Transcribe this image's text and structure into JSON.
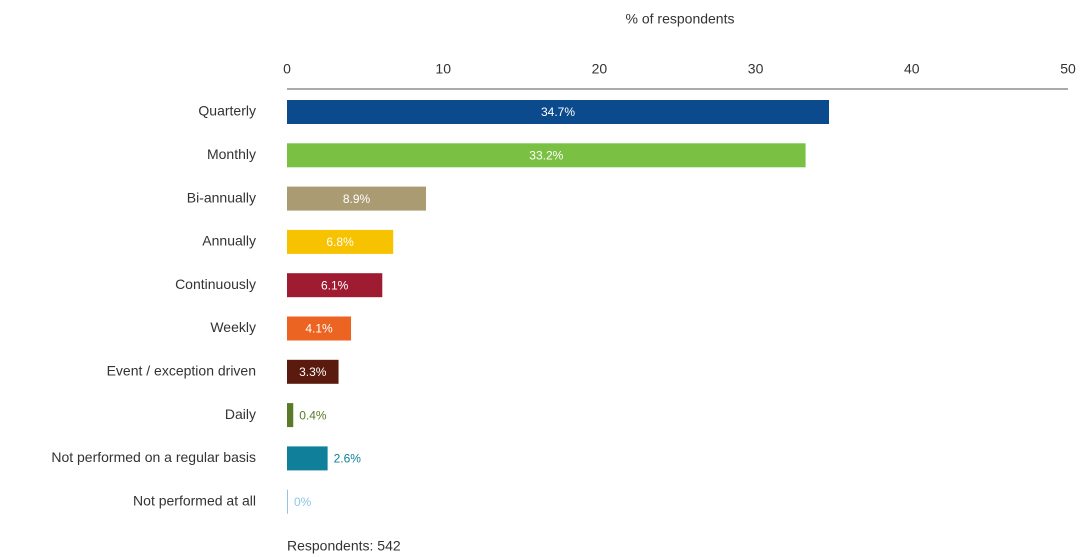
{
  "chart_data": {
    "type": "barh",
    "xlabel": "% of respondents",
    "categories": [
      "Quarterly",
      "Monthly",
      "Bi-annually",
      "Annually",
      "Continuously",
      "Weekly",
      "Event / exception driven",
      "Daily",
      "Not performed on a regular basis",
      "Not performed at all"
    ],
    "values": [
      34.7,
      33.2,
      8.9,
      6.8,
      6.1,
      4.1,
      3.3,
      0.4,
      2.6,
      0
    ],
    "value_labels": [
      "34.7%",
      "33.2%",
      "8.9%",
      "6.8%",
      "6.1%",
      "4.1%",
      "3.3%",
      "0.4%",
      "2.6%",
      "0%"
    ],
    "colors": [
      "#0b4a8c",
      "#7ac143",
      "#ab9b73",
      "#f7c200",
      "#9e1b32",
      "#ec6422",
      "#5a1a0d",
      "#5a7a2a",
      "#0f7f9a",
      "#8fc5e8"
    ],
    "xlim": [
      0,
      50
    ],
    "xticks": [
      0,
      10,
      20,
      30,
      40,
      50
    ],
    "note": "Respondents: 542"
  }
}
